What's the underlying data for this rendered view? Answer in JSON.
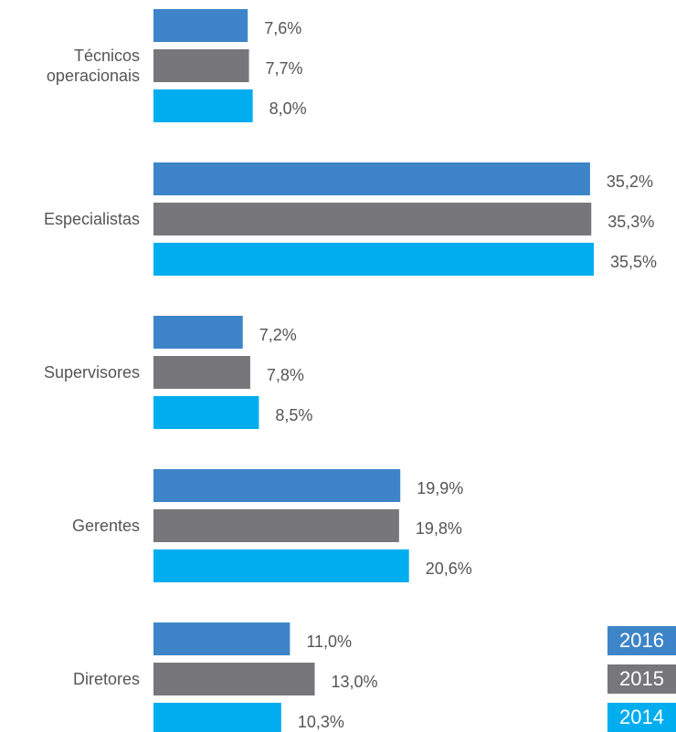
{
  "chart_data": {
    "type": "bar",
    "orientation": "horizontal",
    "categories": [
      "Técnicos operacionais",
      "Especialistas",
      "Supervisores",
      "Gerentes",
      "Diretores"
    ],
    "series": [
      {
        "name": "2016",
        "color": "#3d85c8",
        "values": [
          7.6,
          35.2,
          7.2,
          19.9,
          11.0
        ],
        "value_labels": [
          "7,6%",
          "35,2%",
          "7,2%",
          "19,9%",
          "11,0%"
        ]
      },
      {
        "name": "2015",
        "color": "#77777b",
        "values": [
          7.7,
          35.3,
          7.8,
          19.8,
          13.0
        ],
        "value_labels": [
          "7,7%",
          "35,3%",
          "7,8%",
          "19,8%",
          "13,0%"
        ]
      },
      {
        "name": "2014",
        "color": "#00adef",
        "values": [
          8.0,
          35.5,
          8.5,
          20.6,
          10.3
        ],
        "value_labels": [
          "8,0%",
          "35,5%",
          "8,5%",
          "20,6%",
          "10,3%"
        ]
      }
    ],
    "legend": "bottom-right"
  }
}
